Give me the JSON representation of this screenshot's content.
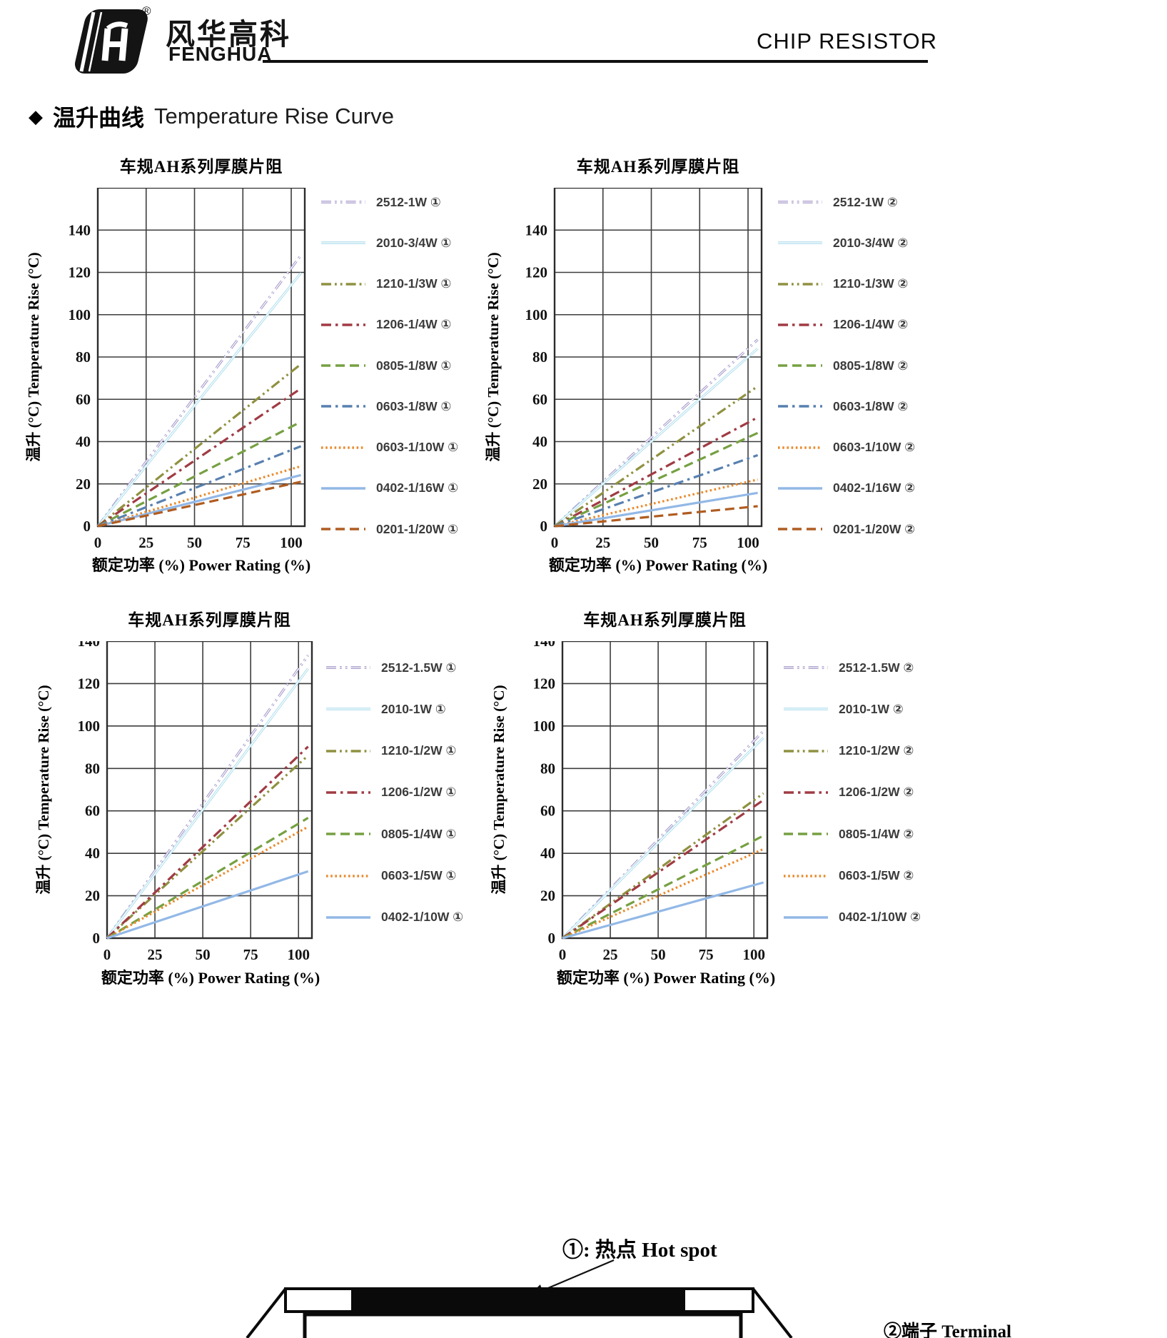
{
  "header": {
    "brand_cn": "风华高科",
    "brand_en": "FENGHUA",
    "reg_mark": "®",
    "doc_title": "CHIP RESISTOR"
  },
  "section": {
    "marker": "◆",
    "title_cn": "温升曲线",
    "title_en": "Temperature Rise Curve"
  },
  "hotspot": {
    "callout": "①: 热点  Hot spot",
    "terminal": "②端子 Terminal"
  },
  "chart_data": [
    {
      "type": "line",
      "title": "车规AH系列厚膜片阻",
      "xlabel": "额定功率 (%)    Power Rating (%)",
      "ylabel": "温升 (°C)   Temperature Rise (°C)",
      "x_ticks": [
        0,
        25,
        50,
        75,
        100
      ],
      "xlim": [
        0,
        107
      ],
      "ylim": [
        0,
        160
      ],
      "y_tick_step": 20,
      "y_tick_max": 140,
      "legend_position": "right",
      "grid": true,
      "x": [
        0,
        100
      ],
      "series": [
        {
          "name": "2512-1W ①",
          "color": "#9b8ec4",
          "dash": "dashdotdot",
          "double": true,
          "values": [
            0,
            122
          ]
        },
        {
          "name": "2010-3/4W ①",
          "color": "#aadcec",
          "dash": "solid",
          "double": true,
          "values": [
            0,
            114
          ]
        },
        {
          "name": "1210-1/3W ①",
          "color": "#8f9140",
          "dash": "dashdotdot",
          "double": false,
          "values": [
            0,
            73
          ]
        },
        {
          "name": "1206-1/4W ①",
          "color": "#a03b44",
          "dash": "dashdot",
          "double": false,
          "values": [
            0,
            62
          ]
        },
        {
          "name": "0805-1/8W ①",
          "color": "#76a042",
          "dash": "dash",
          "double": false,
          "values": [
            0,
            47
          ]
        },
        {
          "name": "0603-1/8W ①",
          "color": "#5880b0",
          "dash": "dashdot",
          "double": false,
          "values": [
            0,
            36
          ]
        },
        {
          "name": "0603-1/10W ①",
          "color": "#e98b2e",
          "dash": "dot",
          "double": false,
          "values": [
            0,
            27
          ]
        },
        {
          "name": "0402-1/16W ①",
          "color": "#92b8e6",
          "dash": "solid",
          "double": false,
          "values": [
            0,
            23
          ]
        },
        {
          "name": "0201-1/20W ①",
          "color": "#b05c20",
          "dash": "dash",
          "double": false,
          "values": [
            0,
            20
          ]
        }
      ]
    },
    {
      "type": "line",
      "title": "车规AH系列厚膜片阻",
      "xlabel": "额定功率 (%)    Power Rating (%)",
      "ylabel": "温升 (°C)   Temperature Rise (°C)",
      "x_ticks": [
        0,
        25,
        50,
        75,
        100
      ],
      "xlim": [
        0,
        107
      ],
      "ylim": [
        0,
        160
      ],
      "y_tick_step": 20,
      "y_tick_max": 140,
      "legend_position": "right",
      "grid": true,
      "x": [
        0,
        100
      ],
      "series": [
        {
          "name": "2512-1W ②",
          "color": "#9b8ec4",
          "dash": "dashdotdot",
          "double": true,
          "values": [
            0,
            84
          ]
        },
        {
          "name": "2010-3/4W ②",
          "color": "#aadcec",
          "dash": "solid",
          "double": true,
          "values": [
            0,
            80
          ]
        },
        {
          "name": "1210-1/3W ②",
          "color": "#8f9140",
          "dash": "dashdotdot",
          "double": false,
          "values": [
            0,
            63
          ]
        },
        {
          "name": "1206-1/4W ②",
          "color": "#a03b44",
          "dash": "dashdot",
          "double": false,
          "values": [
            0,
            49
          ]
        },
        {
          "name": "0805-1/8W ②",
          "color": "#76a042",
          "dash": "dash",
          "double": false,
          "values": [
            0,
            42
          ]
        },
        {
          "name": "0603-1/8W ②",
          "color": "#5880b0",
          "dash": "dashdot",
          "double": false,
          "values": [
            0,
            32
          ]
        },
        {
          "name": "0603-1/10W ②",
          "color": "#e98b2e",
          "dash": "dot",
          "double": false,
          "values": [
            0,
            21
          ]
        },
        {
          "name": "0402-1/16W ②",
          "color": "#92b8e6",
          "dash": "solid",
          "double": false,
          "values": [
            0,
            15
          ]
        },
        {
          "name": "0201-1/20W ②",
          "color": "#b05c20",
          "dash": "dash",
          "double": false,
          "values": [
            0,
            9
          ]
        }
      ]
    },
    {
      "type": "line",
      "title": "车规AH系列厚膜片阻",
      "xlabel": "额定功率 (%)    Power Rating (%)",
      "ylabel": "温升 (°C)   Temperature Rise (°C)",
      "x_ticks": [
        0,
        25,
        50,
        75,
        100
      ],
      "xlim": [
        0,
        107
      ],
      "ylim": [
        0,
        140
      ],
      "y_tick_step": 20,
      "y_tick_max": 140,
      "legend_position": "right",
      "grid": true,
      "x": [
        0,
        100
      ],
      "series": [
        {
          "name": "2512-1.5W ①",
          "color": "#9b8ec4",
          "dash": "dashdotdot",
          "double": true,
          "values": [
            0,
            127
          ]
        },
        {
          "name": "2010-1W ①",
          "color": "#aadcec",
          "dash": "solid",
          "double": true,
          "values": [
            0,
            121
          ]
        },
        {
          "name": "1210-1/2W ①",
          "color": "#8f9140",
          "dash": "dashdotdot",
          "double": false,
          "values": [
            0,
            82
          ]
        },
        {
          "name": "1206-1/2W ①",
          "color": "#a03b44",
          "dash": "dashdot",
          "double": false,
          "values": [
            0,
            86
          ]
        },
        {
          "name": "0805-1/4W ①",
          "color": "#76a042",
          "dash": "dash",
          "double": false,
          "values": [
            0,
            54
          ]
        },
        {
          "name": "0603-1/5W ①",
          "color": "#e98b2e",
          "dash": "dot",
          "double": false,
          "values": [
            0,
            50
          ]
        },
        {
          "name": "0402-1/10W ①",
          "color": "#92b8e6",
          "dash": "solid",
          "double": false,
          "values": [
            0,
            30
          ]
        }
      ]
    },
    {
      "type": "line",
      "title": "车规AH系列厚膜片阻",
      "xlabel": "额定功率 (%)    Power Rating (%)",
      "ylabel": "温升 (°C)   Temperature Rise (°C)",
      "x_ticks": [
        0,
        25,
        50,
        75,
        100
      ],
      "xlim": [
        0,
        107
      ],
      "ylim": [
        0,
        140
      ],
      "y_tick_step": 20,
      "y_tick_max": 140,
      "legend_position": "right",
      "grid": true,
      "x": [
        0,
        100
      ],
      "series": [
        {
          "name": "2512-1.5W ②",
          "color": "#9b8ec4",
          "dash": "dashdotdot",
          "double": true,
          "values": [
            0,
            93
          ]
        },
        {
          "name": "2010-1W ②",
          "color": "#aadcec",
          "dash": "solid",
          "double": true,
          "values": [
            0,
            90
          ]
        },
        {
          "name": "1210-1/2W ②",
          "color": "#8f9140",
          "dash": "dashdotdot",
          "double": false,
          "values": [
            0,
            65
          ]
        },
        {
          "name": "1206-1/2W ②",
          "color": "#a03b44",
          "dash": "dashdot",
          "double": false,
          "values": [
            0,
            62
          ]
        },
        {
          "name": "0805-1/4W ②",
          "color": "#76a042",
          "dash": "dash",
          "double": false,
          "values": [
            0,
            46
          ]
        },
        {
          "name": "0603-1/5W ②",
          "color": "#e98b2e",
          "dash": "dot",
          "double": false,
          "values": [
            0,
            40
          ]
        },
        {
          "name": "0402-1/10W ②",
          "color": "#92b8e6",
          "dash": "solid",
          "double": false,
          "values": [
            0,
            25
          ]
        }
      ]
    }
  ]
}
